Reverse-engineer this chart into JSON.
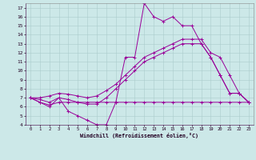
{
  "xlabel": "Windchill (Refroidissement éolien,°C)",
  "bg_color": "#cce8e8",
  "grid_color": "#aacccc",
  "line_color": "#990099",
  "xlim": [
    -0.5,
    23.5
  ],
  "ylim": [
    4,
    17.5
  ],
  "xticks": [
    0,
    1,
    2,
    3,
    4,
    5,
    6,
    7,
    8,
    9,
    10,
    11,
    12,
    13,
    14,
    15,
    16,
    17,
    18,
    19,
    20,
    21,
    22,
    23
  ],
  "yticks": [
    4,
    5,
    6,
    7,
    8,
    9,
    10,
    11,
    12,
    13,
    14,
    15,
    16,
    17
  ],
  "series": [
    {
      "x": [
        0,
        1,
        2,
        3,
        4,
        5,
        6,
        7,
        8,
        9,
        10,
        11,
        12,
        13,
        14,
        15,
        16,
        17,
        18,
        19,
        20,
        21,
        22,
        23
      ],
      "y": [
        7.0,
        6.5,
        6.0,
        7.0,
        5.5,
        5.0,
        4.5,
        4.0,
        4.0,
        6.5,
        11.5,
        11.5,
        17.5,
        16.0,
        15.5,
        16.0,
        15.0,
        15.0,
        13.0,
        11.5,
        9.5,
        7.5,
        7.5,
        6.5
      ]
    },
    {
      "x": [
        0,
        1,
        2,
        3,
        4,
        5,
        6,
        7,
        8,
        9,
        10,
        11,
        12,
        13,
        14,
        15,
        16,
        17,
        18,
        19,
        20,
        21,
        22,
        23
      ],
      "y": [
        7.0,
        6.5,
        6.2,
        6.5,
        6.5,
        6.5,
        6.5,
        6.5,
        6.5,
        6.5,
        6.5,
        6.5,
        6.5,
        6.5,
        6.5,
        6.5,
        6.5,
        6.5,
        6.5,
        6.5,
        6.5,
        6.5,
        6.5,
        6.5
      ]
    },
    {
      "x": [
        0,
        1,
        2,
        3,
        4,
        5,
        6,
        7,
        8,
        9,
        10,
        11,
        12,
        13,
        14,
        15,
        16,
        17,
        18,
        19,
        20,
        21,
        22,
        23
      ],
      "y": [
        7.0,
        6.8,
        6.5,
        7.0,
        6.8,
        6.5,
        6.3,
        6.3,
        7.0,
        8.0,
        9.0,
        10.0,
        11.0,
        11.5,
        12.0,
        12.5,
        13.0,
        13.0,
        13.0,
        11.5,
        9.5,
        7.5,
        7.5,
        6.5
      ]
    },
    {
      "x": [
        0,
        1,
        2,
        3,
        4,
        5,
        6,
        7,
        8,
        9,
        10,
        11,
        12,
        13,
        14,
        15,
        16,
        17,
        18,
        19,
        20,
        21,
        22,
        23
      ],
      "y": [
        7.0,
        7.0,
        7.2,
        7.5,
        7.4,
        7.2,
        7.0,
        7.2,
        7.8,
        8.5,
        9.5,
        10.5,
        11.5,
        12.0,
        12.5,
        13.0,
        13.5,
        13.5,
        13.5,
        12.0,
        11.5,
        9.5,
        7.5,
        6.5
      ]
    }
  ]
}
